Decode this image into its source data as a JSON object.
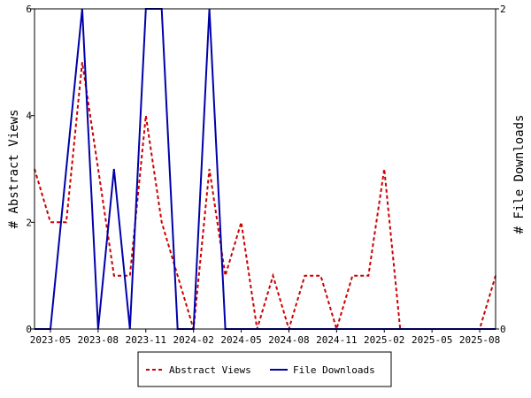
{
  "chart_data": {
    "type": "line",
    "ylabel_left": "# Abstract Views",
    "ylabel_right": "# File Downloads",
    "x_tick_labels": [
      "2023-05",
      "2023-08",
      "2023-11",
      "2024-02",
      "2024-05",
      "2024-08",
      "2024-11",
      "2025-02",
      "2025-05",
      "2025-08"
    ],
    "y_left_ticks": [
      "0",
      "2",
      "4",
      "6"
    ],
    "y_right_ticks": [
      "0",
      "2"
    ],
    "ylim_left": [
      0,
      6
    ],
    "ylim_right": [
      0,
      2
    ],
    "x_domain": [
      "2023-04",
      "2025-09"
    ],
    "grid": false,
    "legend_position": "bottom",
    "series": [
      {
        "name": "Abstract Views",
        "axis": "left",
        "color": "#cc0000",
        "style": "dashed",
        "points": [
          {
            "x": "2023-04",
            "y": 3
          },
          {
            "x": "2023-05",
            "y": 2
          },
          {
            "x": "2023-06",
            "y": 2
          },
          {
            "x": "2023-07",
            "y": 5
          },
          {
            "x": "2023-08",
            "y": 3
          },
          {
            "x": "2023-09",
            "y": 1
          },
          {
            "x": "2023-10",
            "y": 1
          },
          {
            "x": "2023-11",
            "y": 4
          },
          {
            "x": "2023-12",
            "y": 2
          },
          {
            "x": "2024-01",
            "y": 1
          },
          {
            "x": "2024-02",
            "y": 0
          },
          {
            "x": "2024-03",
            "y": 3
          },
          {
            "x": "2024-04",
            "y": 1
          },
          {
            "x": "2024-05",
            "y": 2
          },
          {
            "x": "2024-06",
            "y": 0
          },
          {
            "x": "2024-07",
            "y": 1
          },
          {
            "x": "2024-08",
            "y": 0
          },
          {
            "x": "2024-09",
            "y": 1
          },
          {
            "x": "2024-10",
            "y": 1
          },
          {
            "x": "2024-11",
            "y": 0
          },
          {
            "x": "2024-12",
            "y": 1
          },
          {
            "x": "2025-01",
            "y": 1
          },
          {
            "x": "2025-02",
            "y": 3
          },
          {
            "x": "2025-03",
            "y": 0
          },
          {
            "x": "2025-04",
            "y": 0
          },
          {
            "x": "2025-05",
            "y": 0
          },
          {
            "x": "2025-06",
            "y": 0
          },
          {
            "x": "2025-07",
            "y": 0
          },
          {
            "x": "2025-08",
            "y": 0
          },
          {
            "x": "2025-09",
            "y": 1
          }
        ]
      },
      {
        "name": "File Downloads",
        "axis": "right",
        "color": "#0000aa",
        "style": "solid",
        "points": [
          {
            "x": "2023-04",
            "y": 0
          },
          {
            "x": "2023-05",
            "y": 0
          },
          {
            "x": "2023-06",
            "y": 1
          },
          {
            "x": "2023-07",
            "y": 2
          },
          {
            "x": "2023-08",
            "y": 0
          },
          {
            "x": "2023-09",
            "y": 1
          },
          {
            "x": "2023-10",
            "y": 0
          },
          {
            "x": "2023-11",
            "y": 2
          },
          {
            "x": "2023-12",
            "y": 2
          },
          {
            "x": "2024-01",
            "y": 0
          },
          {
            "x": "2024-02",
            "y": 0
          },
          {
            "x": "2024-03",
            "y": 2
          },
          {
            "x": "2024-04",
            "y": 0
          },
          {
            "x": "2024-05",
            "y": 0
          },
          {
            "x": "2024-06",
            "y": 0
          },
          {
            "x": "2024-07",
            "y": 0
          },
          {
            "x": "2024-08",
            "y": 0
          },
          {
            "x": "2024-09",
            "y": 0
          },
          {
            "x": "2024-10",
            "y": 0
          },
          {
            "x": "2024-11",
            "y": 0
          },
          {
            "x": "2024-12",
            "y": 0
          },
          {
            "x": "2025-01",
            "y": 0
          },
          {
            "x": "2025-02",
            "y": 0
          },
          {
            "x": "2025-03",
            "y": 0
          },
          {
            "x": "2025-04",
            "y": 0
          },
          {
            "x": "2025-05",
            "y": 0
          },
          {
            "x": "2025-06",
            "y": 0
          },
          {
            "x": "2025-07",
            "y": 0
          },
          {
            "x": "2025-08",
            "y": 0
          },
          {
            "x": "2025-09",
            "y": 0
          }
        ]
      }
    ]
  }
}
